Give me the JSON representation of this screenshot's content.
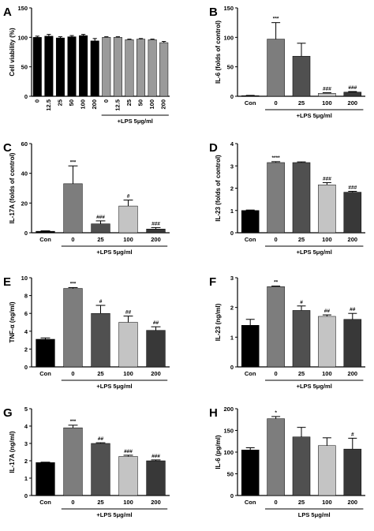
{
  "colors": {
    "black": "#000000",
    "dark_gray": "#505050",
    "mid_gray": "#7d7d7d",
    "light_gray": "#c4c4c4",
    "darker_gray": "#383838",
    "viability_gray": "#9a9a9a"
  },
  "chart_data": [
    {
      "panel": "A",
      "type": "bar",
      "ylabel": "Cell viability (%)",
      "ylim": [
        0,
        150
      ],
      "yticks": [
        "0",
        "50",
        "100",
        "150"
      ],
      "categories": [
        "0",
        "12.5",
        "25",
        "50",
        "100",
        "200",
        "0",
        "12.5",
        "25",
        "50",
        "100",
        "200"
      ],
      "values": [
        100,
        102,
        99,
        101,
        103,
        94,
        100,
        100,
        96,
        97,
        96,
        91
      ],
      "errors": [
        2,
        3,
        2,
        2,
        2,
        4,
        1,
        1,
        1,
        1,
        1,
        2
      ],
      "bar_colors": [
        "black",
        "black",
        "black",
        "black",
        "black",
        "black",
        "viability_gray",
        "viability_gray",
        "viability_gray",
        "viability_gray",
        "viability_gray",
        "viability_gray"
      ],
      "significance": [
        "",
        "",
        "",
        "",
        "",
        "",
        "",
        "",
        "",
        "",
        "",
        ""
      ],
      "group_label": "+LPS 5μg/ml",
      "group_start": 6,
      "group_end": 11,
      "rotated_ticks": true
    },
    {
      "panel": "B",
      "type": "bar",
      "ylabel": "IL-6 (folds of control)",
      "ylim": [
        0,
        150
      ],
      "yticks": [
        "0",
        "50",
        "100",
        "150"
      ],
      "categories": [
        "Con",
        "0",
        "25",
        "100",
        "200"
      ],
      "values": [
        1,
        97,
        68,
        5,
        7
      ],
      "errors": [
        0.5,
        28,
        22,
        1,
        1
      ],
      "bar_colors": [
        "black",
        "mid_gray",
        "dark_gray",
        "light_gray",
        "darker_gray"
      ],
      "significance": [
        "",
        "***",
        "",
        "###",
        "###"
      ],
      "group_label": "+LPS 5μg/ml",
      "group_start": 1,
      "group_end": 4
    },
    {
      "panel": "C",
      "type": "bar",
      "ylabel": "IL-17A (folds of control)",
      "ylim": [
        0,
        60
      ],
      "yticks": [
        "0",
        "20",
        "40",
        "60"
      ],
      "categories": [
        "Con",
        "0",
        "25",
        "100",
        "200"
      ],
      "values": [
        1,
        33,
        6,
        18,
        2.5
      ],
      "errors": [
        0.3,
        12,
        2,
        4,
        1
      ],
      "bar_colors": [
        "black",
        "mid_gray",
        "dark_gray",
        "light_gray",
        "darker_gray"
      ],
      "significance": [
        "",
        "***",
        "###",
        "#",
        "###"
      ],
      "group_label": "+LPS 5μg/ml",
      "group_start": 1,
      "group_end": 4
    },
    {
      "panel": "D",
      "type": "bar",
      "ylabel": "IL-23 (folds of control)",
      "ylim": [
        0,
        4
      ],
      "yticks": [
        "0",
        "1",
        "2",
        "3",
        "4"
      ],
      "categories": [
        "Con",
        "0",
        "25",
        "100",
        "200"
      ],
      "values": [
        1,
        3.15,
        3.15,
        2.15,
        1.82
      ],
      "errors": [
        0.02,
        0.04,
        0.03,
        0.1,
        0.04
      ],
      "bar_colors": [
        "black",
        "mid_gray",
        "dark_gray",
        "light_gray",
        "darker_gray"
      ],
      "significance": [
        "",
        "****",
        "",
        "###",
        "###"
      ],
      "group_label": "+LPS 5μg/ml",
      "group_start": 1,
      "group_end": 4
    },
    {
      "panel": "E",
      "type": "bar",
      "ylabel": "TNF-α (ng/ml)",
      "ylim": [
        0,
        10
      ],
      "yticks": [
        "0",
        "2",
        "4",
        "6",
        "8",
        "10"
      ],
      "categories": [
        "Con",
        "0",
        "25",
        "100",
        "200"
      ],
      "values": [
        3.1,
        8.8,
        6.0,
        5.0,
        4.1
      ],
      "errors": [
        0.15,
        0.1,
        0.9,
        0.7,
        0.4
      ],
      "bar_colors": [
        "black",
        "mid_gray",
        "dark_gray",
        "light_gray",
        "darker_gray"
      ],
      "significance": [
        "",
        "***",
        "#",
        "##",
        "##"
      ],
      "group_label": "+LPS 5μg/ml",
      "group_start": 1,
      "group_end": 4
    },
    {
      "panel": "F",
      "type": "bar",
      "ylabel": "IL-23 (ng/ml)",
      "ylim": [
        0,
        3
      ],
      "yticks": [
        "0",
        "1",
        "2",
        "3"
      ],
      "categories": [
        "Con",
        "0",
        "25",
        "100",
        "200"
      ],
      "values": [
        1.4,
        2.7,
        1.9,
        1.7,
        1.6
      ],
      "errors": [
        0.2,
        0.02,
        0.15,
        0.05,
        0.2
      ],
      "bar_colors": [
        "black",
        "mid_gray",
        "dark_gray",
        "light_gray",
        "darker_gray"
      ],
      "significance": [
        "",
        "**",
        "#",
        "##",
        "##"
      ],
      "group_label": "+LPS 5μg/ml",
      "group_start": 1,
      "group_end": 4
    },
    {
      "panel": "G",
      "type": "bar",
      "ylabel": "IL-17A (ng/ml)",
      "ylim": [
        0,
        5
      ],
      "yticks": [
        "0",
        "1",
        "2",
        "3",
        "4",
        "5"
      ],
      "categories": [
        "Con",
        "0",
        "25",
        "100",
        "200"
      ],
      "values": [
        1.9,
        3.9,
        3.0,
        2.25,
        2.0
      ],
      "errors": [
        0.02,
        0.15,
        0.04,
        0.07,
        0.05
      ],
      "bar_colors": [
        "black",
        "mid_gray",
        "dark_gray",
        "light_gray",
        "darker_gray"
      ],
      "significance": [
        "",
        "***",
        "##",
        "###",
        "###"
      ],
      "group_label": "+LPS 5μg/ml",
      "group_start": 1,
      "group_end": 4
    },
    {
      "panel": "H",
      "type": "bar",
      "ylabel": "IL-6 (pg/ml)",
      "ylim": [
        0,
        200
      ],
      "yticks": [
        "0",
        "50",
        "100",
        "150",
        "200"
      ],
      "categories": [
        "Con",
        "0",
        "25",
        "100",
        "200"
      ],
      "values": [
        105,
        177,
        135,
        115,
        107
      ],
      "errors": [
        5,
        5,
        22,
        18,
        25
      ],
      "bar_colors": [
        "black",
        "mid_gray",
        "dark_gray",
        "light_gray",
        "darker_gray"
      ],
      "significance": [
        "",
        "*",
        "",
        "",
        "#"
      ],
      "group_label": "LPS 5μg/ml",
      "group_start": 1,
      "group_end": 4
    }
  ]
}
